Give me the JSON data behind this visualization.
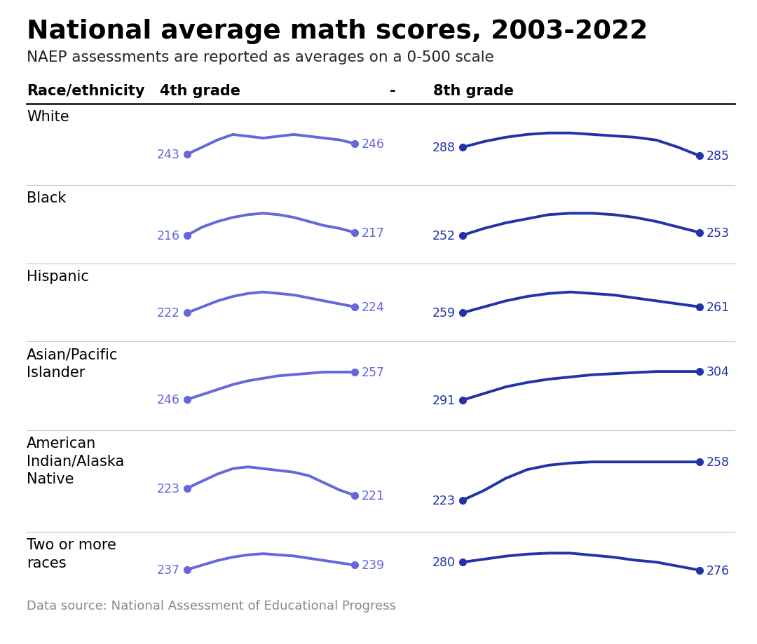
{
  "title": "National average math scores, 2003-2022",
  "subtitle": "NAEP assessments are reported as averages on a 0-500 scale",
  "footer": "Data source: National Assessment of Educational Progress",
  "col_headers": [
    "Race/ethnicity",
    "4th grade",
    "-",
    "8th grade"
  ],
  "background_color": "#ffffff",
  "line_color_4th": "#6666dd",
  "line_color_8th": "#2233aa",
  "races": [
    "White",
    "Black",
    "Hispanic",
    "Asian/Pacific\nIslander",
    "American\nIndian/Alaska\nNative",
    "Two or more\nraces"
  ],
  "grade4_start": [
    243,
    216,
    222,
    246,
    223,
    237
  ],
  "grade4_end": [
    246,
    217,
    224,
    257,
    221,
    239
  ],
  "grade4_series": [
    [
      243,
      245,
      247,
      248.5,
      248,
      247.5,
      248,
      248.5,
      248,
      247.5,
      247,
      246
    ],
    [
      216,
      219,
      221,
      222.5,
      223.5,
      224,
      223.5,
      222.5,
      221,
      219.5,
      218.5,
      217
    ],
    [
      222,
      224,
      226,
      227.5,
      228.5,
      229,
      228.5,
      228,
      227,
      226,
      225,
      224
    ],
    [
      246,
      248,
      250,
      252,
      253.5,
      254.5,
      255.5,
      256,
      256.5,
      257,
      257,
      257
    ],
    [
      223,
      225,
      227,
      228.5,
      229,
      228.5,
      228,
      227.5,
      226.5,
      224.5,
      222.5,
      221
    ],
    [
      237,
      239,
      241,
      242.5,
      243.5,
      244,
      243.5,
      243,
      242,
      241,
      240,
      239
    ]
  ],
  "grade8_start": [
    288,
    252,
    259,
    291,
    223,
    280
  ],
  "grade8_end": [
    285,
    253,
    261,
    304,
    258,
    276
  ],
  "grade8_series": [
    [
      288,
      290,
      291.5,
      292.5,
      293,
      293,
      292.5,
      292,
      291.5,
      290.5,
      288,
      285
    ],
    [
      252,
      254.5,
      256.5,
      258,
      259.5,
      260,
      260,
      259.5,
      258.5,
      257,
      255,
      253
    ],
    [
      259,
      261,
      263,
      264.5,
      265.5,
      266,
      265.5,
      265,
      264,
      263,
      262,
      261
    ],
    [
      291,
      294,
      297,
      299,
      300.5,
      301.5,
      302.5,
      303,
      303.5,
      304,
      304,
      304
    ],
    [
      223,
      232,
      243,
      251,
      255,
      257,
      258,
      258,
      258,
      258,
      258,
      258
    ],
    [
      280,
      281.5,
      283,
      284,
      284.5,
      284.5,
      283.5,
      282.5,
      281,
      280,
      278,
      276
    ]
  ]
}
